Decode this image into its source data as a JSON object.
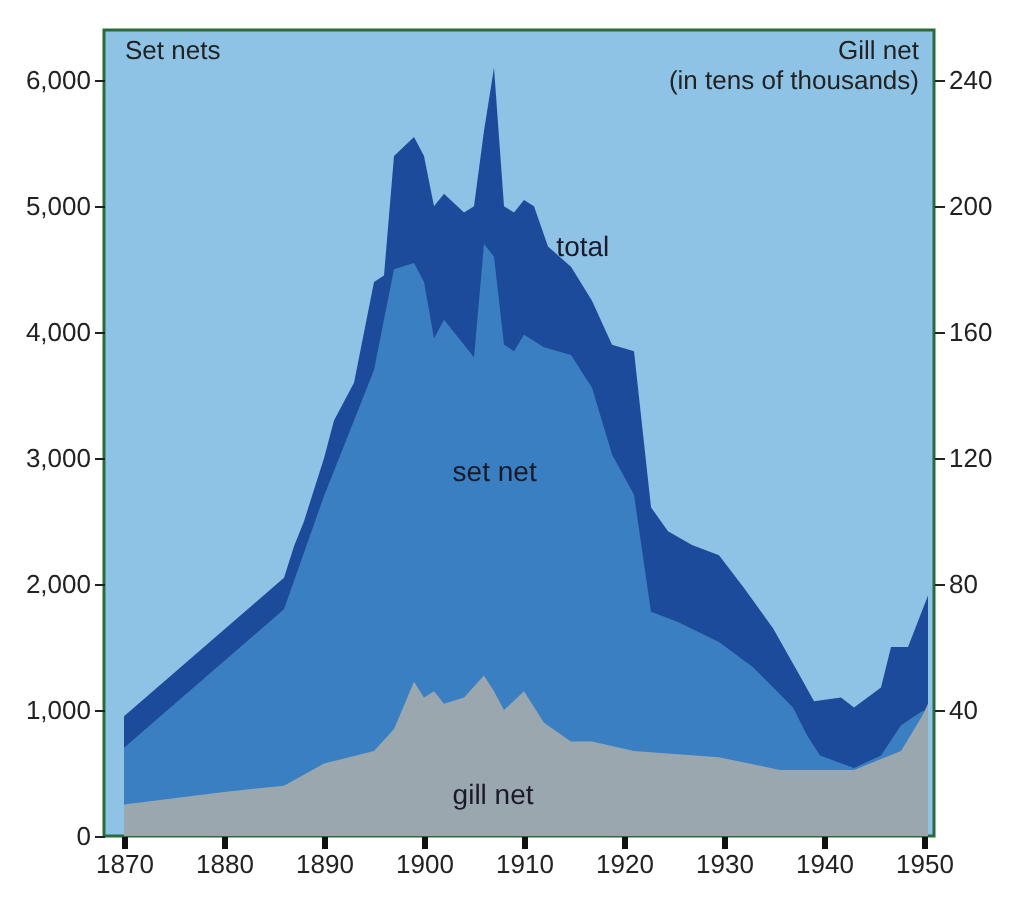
{
  "chart_data": {
    "type": "area",
    "ylabel": "Set nets",
    "y2label": "Gill net\n(in tens of thousands)",
    "xlim": [
      1868,
      1951
    ],
    "xticks": [
      1870,
      1880,
      1890,
      1900,
      1910,
      1920,
      1930,
      1940,
      1950
    ],
    "ylim": [
      0,
      6400
    ],
    "yticks": [
      0,
      {
        "value": 1000,
        "label": "1,000"
      },
      {
        "value": 2000,
        "label": "2,000"
      },
      {
        "value": 3000,
        "label": "3,000"
      },
      {
        "value": 4000,
        "label": "4,000"
      },
      {
        "value": 5000,
        "label": "5,000"
      },
      {
        "value": 6000,
        "label": "6,000"
      }
    ],
    "y2lim": [
      0,
      256
    ],
    "y2ticks": [
      40,
      80,
      120,
      160,
      200,
      240
    ],
    "grid": false,
    "series": [
      {
        "name": "total",
        "color": "#1d4b9b",
        "x": [
          1870,
          1886,
          1887,
          1888,
          1890,
          1891,
          1893,
          1895,
          1896,
          1897,
          1899,
          1900,
          1901,
          1902,
          1904,
          1905,
          1906,
          1907,
          1908,
          1909,
          1910,
          1911,
          1912.4,
          1914.7,
          1916.8,
          1918.8,
          1921,
          1922.7,
          1924.4,
          1926.8,
          1929.5,
          1932,
          1934.9,
          1937.6,
          1939,
          1941.7,
          1943,
          1945.7,
          1946.7,
          1948.4,
          1950.4
        ],
        "values": [
          950,
          2050,
          2300,
          2500,
          3000,
          3300,
          3600,
          4400,
          4450,
          5400,
          5550,
          5400,
          5000,
          5100,
          4950,
          5000,
          5600,
          6100,
          5000,
          4950,
          5050,
          5000,
          4680,
          4520,
          4250,
          3900,
          3850,
          2610,
          2420,
          2310,
          2230,
          1970,
          1650,
          1270,
          1070,
          1100,
          1020,
          1180,
          1500,
          1500,
          1910
        ]
      },
      {
        "name": "set net",
        "color": "#3a7fc1",
        "x": [
          1870,
          1886,
          1890,
          1893,
          1895,
          1897,
          1899,
          1900,
          1901,
          1902,
          1904,
          1905,
          1906,
          1907,
          1908,
          1909,
          1910,
          1912,
          1914.7,
          1916.8,
          1918.8,
          1921,
          1922.7,
          1925.4,
          1929.5,
          1932.9,
          1936.9,
          1938.3,
          1939.6,
          1943,
          1945.7,
          1947.7,
          1949.8,
          1950.4
        ],
        "values": [
          700,
          1800,
          2700,
          3300,
          3700,
          4500,
          4550,
          4400,
          3950,
          4100,
          3900,
          3800,
          4700,
          4600,
          3900,
          3850,
          3980,
          3880,
          3820,
          3560,
          3030,
          2710,
          1780,
          1700,
          1540,
          1340,
          1020,
          800,
          640,
          540,
          640,
          880,
          990,
          990
        ]
      },
      {
        "name": "gill net",
        "color": "#9aa7ae",
        "axis": "y2",
        "x": [
          1870,
          1880,
          1886,
          1890,
          1895,
          1897,
          1899,
          1900,
          1901,
          1902,
          1904,
          1906,
          1907,
          1908,
          1910,
          1912,
          1914.7,
          1916.8,
          1921,
          1929.5,
          1935.6,
          1939.6,
          1943,
          1947.7,
          1949.8,
          1950.4
        ],
        "values": [
          10,
          14,
          16,
          23,
          27,
          34,
          49,
          44,
          46,
          42,
          44,
          51,
          46,
          40,
          46,
          36,
          30,
          30,
          27,
          25,
          21,
          21,
          21,
          27,
          38,
          42
        ]
      }
    ]
  }
}
